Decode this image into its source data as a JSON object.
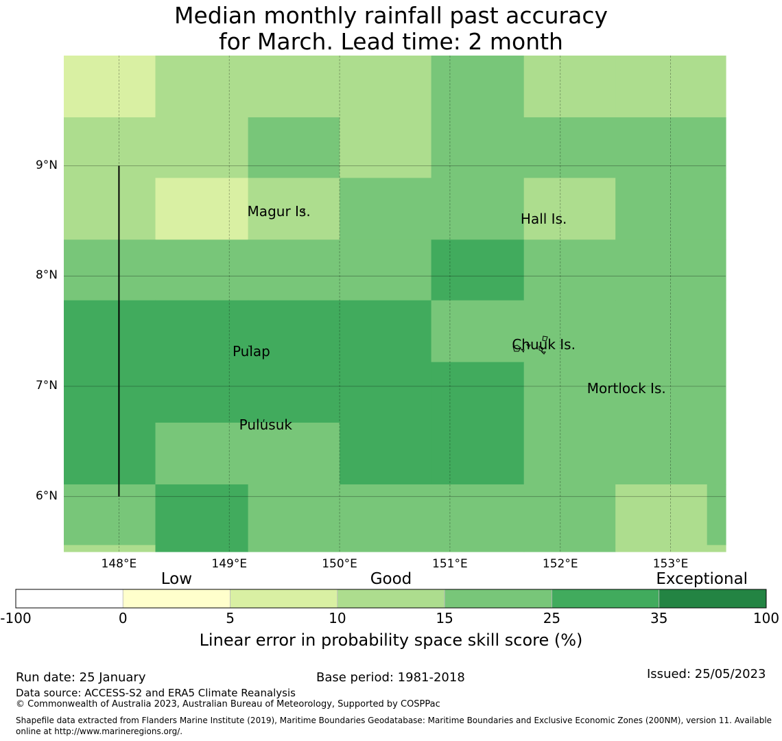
{
  "title": {
    "line1": "Median monthly rainfall past accuracy",
    "line2": "for March. Lead time: 2 month"
  },
  "map": {
    "lon_range": [
      147.5,
      153.5
    ],
    "lat_range": [
      5.5,
      10.0
    ],
    "x_ticks": [
      {
        "value": 148,
        "label": "148°E"
      },
      {
        "value": 149,
        "label": "149°E"
      },
      {
        "value": 150,
        "label": "150°E"
      },
      {
        "value": 151,
        "label": "151°E"
      },
      {
        "value": 152,
        "label": "152°E"
      },
      {
        "value": 153,
        "label": "153°E"
      }
    ],
    "y_ticks": [
      {
        "value": 9,
        "label": "9°N"
      },
      {
        "value": 8,
        "label": "8°N"
      },
      {
        "value": 7,
        "label": "7°N"
      },
      {
        "value": 6,
        "label": "6°N"
      }
    ],
    "cell_lon_edges": [
      147.5,
      148.33,
      149.17,
      150.0,
      150.83,
      151.67,
      152.5,
      153.33,
      153.5
    ],
    "cell_lat_edges": [
      10.0,
      9.44,
      8.89,
      8.33,
      7.78,
      7.22,
      6.67,
      6.11,
      5.56,
      5.5
    ],
    "grid_category": [
      [
        2,
        3,
        3,
        3,
        4,
        3,
        3,
        3
      ],
      [
        3,
        3,
        4,
        3,
        4,
        4,
        4,
        4
      ],
      [
        3,
        2,
        3,
        4,
        4,
        3,
        4,
        4
      ],
      [
        4,
        4,
        4,
        4,
        5,
        4,
        4,
        4
      ],
      [
        5,
        5,
        5,
        5,
        4,
        4,
        4,
        4
      ],
      [
        5,
        5,
        5,
        5,
        5,
        4,
        4,
        4
      ],
      [
        5,
        4,
        4,
        5,
        5,
        4,
        4,
        4
      ],
      [
        4,
        5,
        4,
        4,
        4,
        4,
        3,
        4
      ],
      [
        3,
        5,
        4,
        4,
        4,
        4,
        3,
        3
      ]
    ],
    "places": [
      {
        "name": "Magur Is.",
        "lon": 149.45,
        "lat": 8.59
      },
      {
        "name": "Hall Is.",
        "lon": 151.85,
        "lat": 8.52
      },
      {
        "name": "Pulap",
        "lon": 149.2,
        "lat": 7.32
      },
      {
        "name": "Chuuk Is.",
        "lon": 151.85,
        "lat": 7.38
      },
      {
        "name": "Mortlock Is.",
        "lon": 152.6,
        "lat": 6.98
      },
      {
        "name": "Pulusuk",
        "lon": 149.33,
        "lat": 6.65
      }
    ],
    "boundary_line": {
      "lon": 148.0,
      "lat_from": 6.0,
      "lat_to": 9.0
    }
  },
  "colorbar": {
    "category_labels": [
      {
        "label": "Low",
        "at_bin": 1.5
      },
      {
        "label": "Good",
        "at_bin": 3.5
      },
      {
        "label": "Exceptional",
        "at_bin": 6.4
      }
    ],
    "bins": [
      {
        "from": "-100",
        "to": "0",
        "color": "#ffffff"
      },
      {
        "from": "0",
        "to": "5",
        "color": "#ffffcc"
      },
      {
        "from": "5",
        "to": "10",
        "color": "#d9f0a3"
      },
      {
        "from": "10",
        "to": "15",
        "color": "#addd8e"
      },
      {
        "from": "15",
        "to": "25",
        "color": "#78c679"
      },
      {
        "from": "25",
        "to": "35",
        "color": "#41ab5d"
      },
      {
        "from": "35",
        "to": "100",
        "color": "#238443"
      }
    ],
    "boundary_labels": [
      "-100",
      "0",
      "5",
      "10",
      "15",
      "25",
      "35",
      "100"
    ],
    "axis_label": "Linear error in probability space skill score (%)"
  },
  "footer": {
    "run_date": "Run date: 25 January",
    "base_period": "Base period: 1981-2018",
    "issued": "Issued: 25/05/2023",
    "data_source": "Data source: ACCESS-S2 and ERA5 Climate Reanalysis",
    "copyright": "© Commonwealth of Australia 2023, Australian Bureau of Meteorology, Supported by COSPPac",
    "shapefile": "Shapefile data extracted from Flanders Marine Institute (2019), Maritime Boundaries Geodatabase: Maritime Boundaries and Exclusive Economic Zones (200NM), version 11. Available online at http://www.marineregions.org/."
  }
}
